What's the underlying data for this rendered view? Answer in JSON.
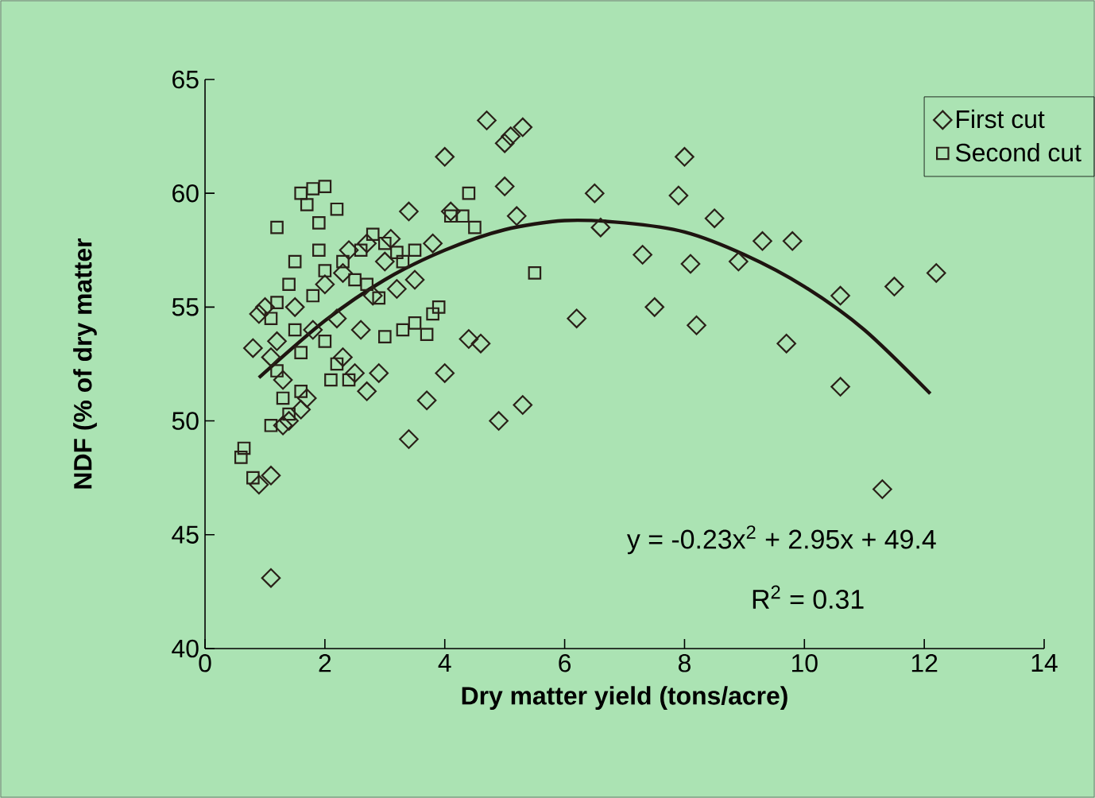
{
  "chart_data": {
    "type": "scatter",
    "xlabel": "Dry matter yield (tons/acre)",
    "ylabel": "NDF (% of dry matter",
    "xlim": [
      0,
      14
    ],
    "ylim": [
      40,
      65
    ],
    "xticks": [
      0,
      2,
      4,
      6,
      8,
      10,
      12,
      14
    ],
    "yticks": [
      40,
      45,
      50,
      55,
      60,
      65
    ],
    "grid": false,
    "legend": "top right",
    "annotations": [
      "y = -0.23x$^{2}$ + 2.95x + 49.4",
      "R$^{2}$ = 0.31"
    ],
    "series": [
      {
        "name": "First cut",
        "marker": "diamond",
        "color": "#2a2018",
        "x": [
          1.1,
          0.9,
          1.1,
          3.4,
          4.9,
          5.3,
          3.7,
          4.0,
          2.7,
          4.4,
          4.6,
          3.4,
          4.0,
          4.7,
          5.0,
          5.1,
          5.3,
          5.0,
          5.2,
          4.1,
          3.8,
          3.5,
          6.2,
          6.5,
          6.6,
          7.3,
          7.5,
          8.0,
          7.9,
          8.1,
          8.5,
          8.2,
          8.9,
          9.3,
          9.8,
          9.7,
          10.6,
          10.6,
          11.3,
          11.5,
          12.2,
          0.8,
          0.9,
          1.0,
          1.1,
          1.3,
          1.2,
          1.4,
          1.3,
          1.6,
          1.7,
          2.3,
          2.5,
          2.6,
          2.9,
          2.0,
          2.4,
          2.8,
          3.0,
          3.2,
          2.2,
          1.8,
          1.5,
          2.7,
          3.1,
          2.3
        ],
        "values": [
          43.1,
          47.2,
          47.6,
          49.2,
          50.0,
          50.7,
          50.9,
          52.1,
          51.3,
          53.6,
          53.4,
          59.2,
          61.6,
          63.2,
          62.2,
          62.5,
          62.9,
          60.3,
          59.0,
          59.2,
          57.8,
          56.2,
          54.5,
          60.0,
          58.5,
          57.3,
          55.0,
          61.6,
          59.9,
          56.9,
          58.9,
          54.2,
          57.0,
          57.9,
          57.9,
          53.4,
          55.5,
          51.5,
          47.0,
          55.9,
          56.5,
          53.2,
          54.7,
          55.0,
          52.8,
          51.8,
          53.5,
          50.0,
          49.8,
          50.5,
          51.0,
          52.8,
          52.1,
          54.0,
          52.1,
          56.0,
          57.5,
          55.5,
          57.0,
          55.8,
          54.5,
          54.0,
          55.0,
          57.8,
          58.0,
          56.5
        ]
      },
      {
        "name": "Second cut",
        "marker": "square",
        "color": "#2a2018",
        "x": [
          0.6,
          0.65,
          0.8,
          1.6,
          1.8,
          2.0,
          1.7,
          2.2,
          1.9,
          1.2,
          1.9,
          1.5,
          2.3,
          2.6,
          2.8,
          3.0,
          2.5,
          1.4,
          1.8,
          1.2,
          1.1,
          1.5,
          2.0,
          2.2,
          1.6,
          1.2,
          1.3,
          1.6,
          2.1,
          2.4,
          1.1,
          1.4,
          3.0,
          3.3,
          3.5,
          3.8,
          3.7,
          3.9,
          3.5,
          3.3,
          4.3,
          4.4,
          4.5,
          4.1,
          5.5,
          2.0,
          2.7,
          3.2,
          2.9
        ],
        "values": [
          48.4,
          48.8,
          47.5,
          60.0,
          60.2,
          60.3,
          59.5,
          59.3,
          58.7,
          58.5,
          57.5,
          57.0,
          57.0,
          57.5,
          58.2,
          57.8,
          56.2,
          56.0,
          55.5,
          55.2,
          54.5,
          54.0,
          53.5,
          52.5,
          53.0,
          52.2,
          51.0,
          51.3,
          51.8,
          51.8,
          49.8,
          50.3,
          53.7,
          54.0,
          54.3,
          54.7,
          53.8,
          55.0,
          57.5,
          57.0,
          59.0,
          60.0,
          58.5,
          59.0,
          56.5,
          56.6,
          56.0,
          57.4,
          55.4
        ]
      },
      {
        "type": "line",
        "marker": "none",
        "line_style": "solid",
        "color": "#1e1410",
        "x": [
          0.9,
          2,
          3,
          4,
          5,
          6,
          7,
          8,
          9,
          10,
          11,
          12.1
        ],
        "values": [
          51.9,
          54.4,
          56.2,
          57.5,
          58.4,
          58.8,
          58.7,
          58.3,
          57.3,
          55.9,
          54.0,
          51.2
        ]
      }
    ]
  }
}
